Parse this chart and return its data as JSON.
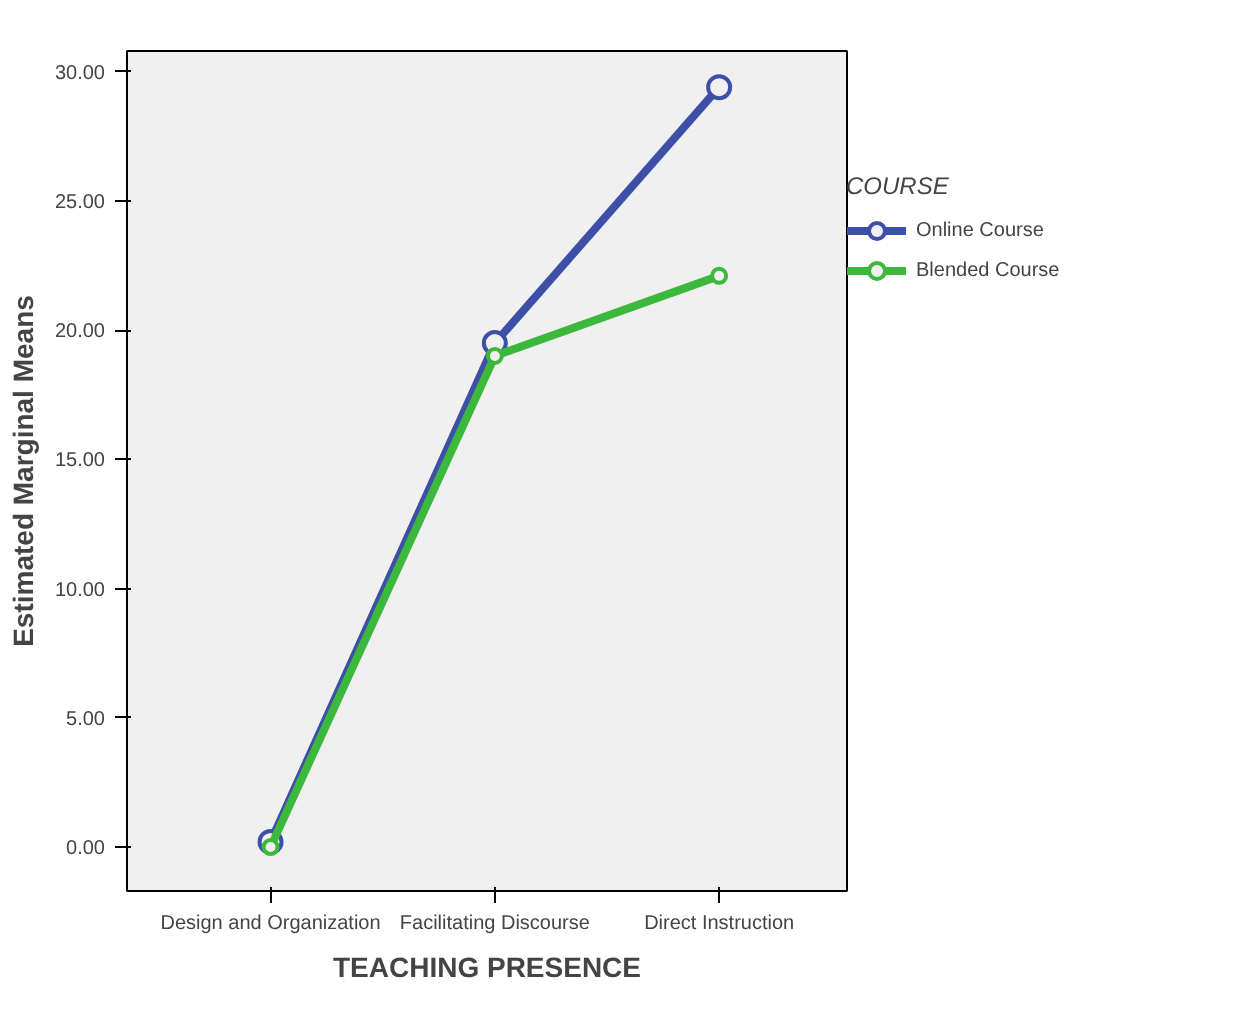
{
  "chart_data": {
    "type": "line",
    "xlabel": "TEACHING PRESENCE",
    "ylabel": "Estimated Marginal Means",
    "legend_title": "COURSE",
    "categories": [
      "Design and Organization",
      "Facilitating Discourse",
      "Direct Instruction"
    ],
    "series": [
      {
        "name": "Online Course",
        "color": "#3e4fa8",
        "values": [
          0.2,
          19.5,
          29.4
        ]
      },
      {
        "name": "Blended Course",
        "color": "#3cb83c",
        "values": [
          0.0,
          19.0,
          22.1
        ]
      }
    ],
    "ylim": [
      -1.7,
      30.8
    ],
    "yticks": [
      {
        "value": 0,
        "label": "0.00"
      },
      {
        "value": 5,
        "label": "5.00"
      },
      {
        "value": 10,
        "label": "10.00"
      },
      {
        "value": 15,
        "label": "15.00"
      },
      {
        "value": 20,
        "label": "20.00"
      },
      {
        "value": 25,
        "label": "25.00"
      },
      {
        "value": 30,
        "label": "30.00"
      }
    ],
    "grid": false,
    "legend": "right",
    "marker": "circle",
    "line_style": "solid"
  }
}
